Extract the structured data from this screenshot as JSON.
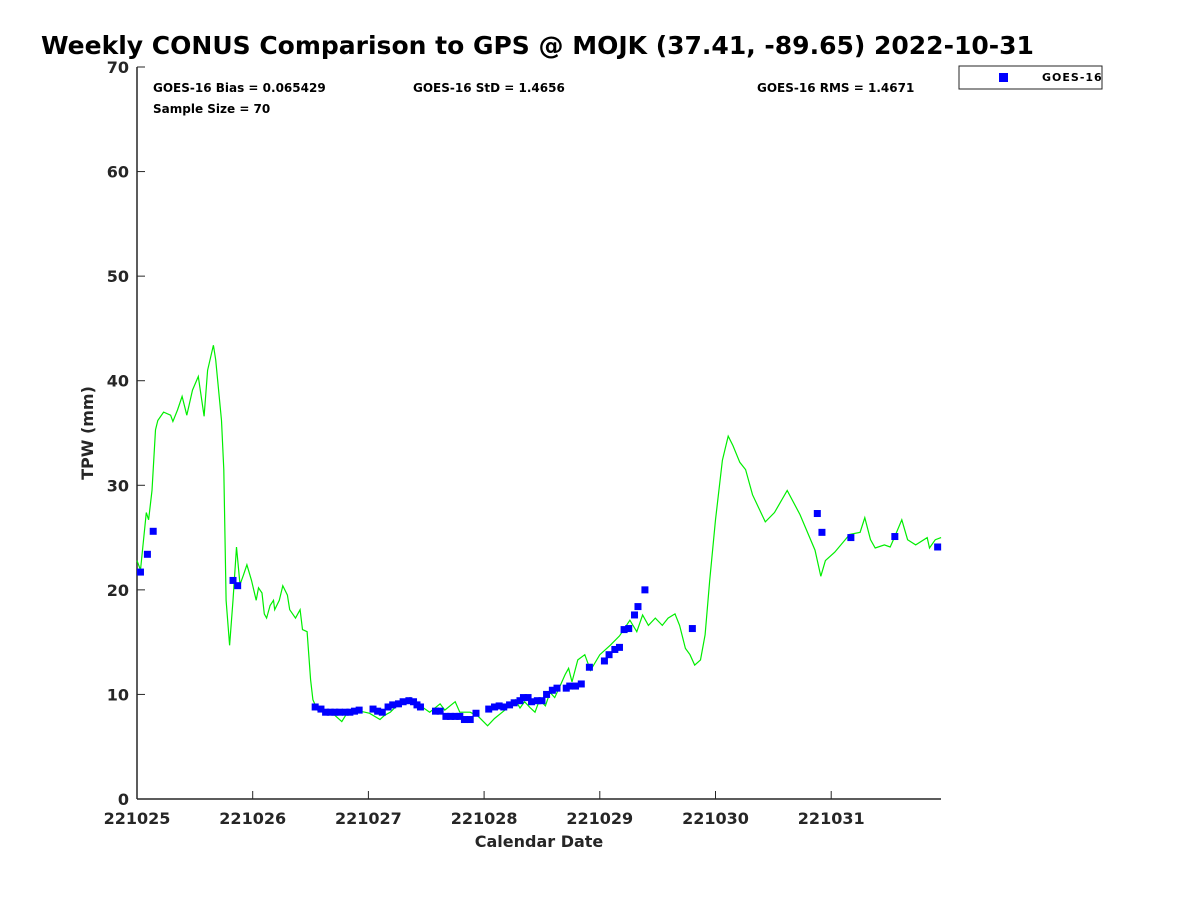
{
  "chart_data": {
    "type": "line",
    "title": "Weekly CONUS Comparison to GPS @ MOJK (37.41, -89.65) 2022-10-31",
    "xlabel": "Calendar Date",
    "ylabel": "TPW (mm)",
    "xlim": [
      0,
      6.95
    ],
    "ylim": [
      0,
      70
    ],
    "x_ticks": [
      0,
      1,
      2,
      3,
      4,
      5,
      6
    ],
    "x_tick_labels": [
      "221025",
      "221026",
      "221027",
      "221028",
      "221029",
      "221030",
      "221031"
    ],
    "y_ticks": [
      0,
      10,
      20,
      30,
      40,
      50,
      60,
      70
    ],
    "y_tick_labels": [
      "0",
      "10",
      "20",
      "30",
      "40",
      "50",
      "60",
      "70"
    ],
    "grid": false,
    "legend": {
      "position": "top-right, outside",
      "entries": [
        "GOES-16"
      ]
    },
    "stats": {
      "bias": "GOES-16 Bias = 0.065429",
      "std": "GOES-16 StD = 1.4656",
      "rms": "GOES-16 RMS = 1.4671",
      "sample_size": "Sample Size = 70"
    },
    "colors": {
      "gps_line": "#00ee00",
      "goes16": "#0000ff"
    },
    "series": [
      {
        "name": "GPS",
        "kind": "line",
        "points": [
          [
            0.0,
            22.8
          ],
          [
            0.03,
            21.9
          ],
          [
            0.08,
            27.4
          ],
          [
            0.1,
            26.7
          ],
          [
            0.13,
            29.5
          ],
          [
            0.16,
            35.3
          ],
          [
            0.18,
            36.2
          ],
          [
            0.23,
            37.0
          ],
          [
            0.29,
            36.7
          ],
          [
            0.31,
            36.1
          ],
          [
            0.35,
            37.2
          ],
          [
            0.39,
            38.5
          ],
          [
            0.43,
            36.7
          ],
          [
            0.48,
            39.1
          ],
          [
            0.53,
            40.4
          ],
          [
            0.58,
            36.6
          ],
          [
            0.61,
            41.0
          ],
          [
            0.66,
            43.4
          ],
          [
            0.68,
            42.0
          ],
          [
            0.73,
            36.2
          ],
          [
            0.75,
            31.5
          ],
          [
            0.77,
            19.0
          ],
          [
            0.8,
            14.7
          ],
          [
            0.83,
            19.0
          ],
          [
            0.86,
            24.1
          ],
          [
            0.89,
            20.5
          ],
          [
            0.92,
            21.4
          ],
          [
            0.95,
            22.4
          ],
          [
            0.99,
            20.9
          ],
          [
            1.03,
            19.0
          ],
          [
            1.05,
            20.2
          ],
          [
            1.08,
            19.7
          ],
          [
            1.1,
            17.7
          ],
          [
            1.12,
            17.3
          ],
          [
            1.15,
            18.5
          ],
          [
            1.18,
            19.0
          ],
          [
            1.19,
            18.1
          ],
          [
            1.23,
            19.0
          ],
          [
            1.26,
            20.4
          ],
          [
            1.3,
            19.5
          ],
          [
            1.32,
            18.1
          ],
          [
            1.37,
            17.3
          ],
          [
            1.41,
            18.1
          ],
          [
            1.43,
            16.2
          ],
          [
            1.47,
            16.0
          ],
          [
            1.5,
            11.4
          ],
          [
            1.52,
            9.5
          ],
          [
            1.56,
            8.5
          ],
          [
            1.62,
            8.3
          ],
          [
            1.71,
            8.0
          ],
          [
            1.77,
            7.4
          ],
          [
            1.82,
            8.3
          ],
          [
            1.88,
            8.5
          ],
          [
            1.97,
            8.3
          ],
          [
            2.01,
            8.2
          ],
          [
            2.1,
            7.6
          ],
          [
            2.14,
            8.0
          ],
          [
            2.19,
            8.3
          ],
          [
            2.27,
            9.2
          ],
          [
            2.36,
            9.7
          ],
          [
            2.45,
            8.9
          ],
          [
            2.53,
            8.3
          ],
          [
            2.62,
            9.1
          ],
          [
            2.66,
            8.5
          ],
          [
            2.75,
            9.3
          ],
          [
            2.79,
            8.3
          ],
          [
            2.88,
            8.3
          ],
          [
            2.95,
            7.9
          ],
          [
            3.03,
            7.0
          ],
          [
            3.09,
            7.7
          ],
          [
            3.18,
            8.5
          ],
          [
            3.27,
            9.5
          ],
          [
            3.31,
            8.7
          ],
          [
            3.35,
            9.3
          ],
          [
            3.4,
            8.7
          ],
          [
            3.44,
            8.3
          ],
          [
            3.48,
            9.5
          ],
          [
            3.53,
            8.9
          ],
          [
            3.57,
            10.2
          ],
          [
            3.61,
            9.7
          ],
          [
            3.66,
            10.9
          ],
          [
            3.7,
            11.9
          ],
          [
            3.73,
            12.5
          ],
          [
            3.76,
            11.2
          ],
          [
            3.81,
            13.3
          ],
          [
            3.87,
            13.8
          ],
          [
            3.92,
            12.3
          ],
          [
            4.0,
            13.8
          ],
          [
            4.09,
            14.7
          ],
          [
            4.17,
            15.6
          ],
          [
            4.26,
            17.1
          ],
          [
            4.32,
            16.0
          ],
          [
            4.37,
            17.6
          ],
          [
            4.42,
            16.6
          ],
          [
            4.48,
            17.3
          ],
          [
            4.54,
            16.6
          ],
          [
            4.59,
            17.3
          ],
          [
            4.65,
            17.7
          ],
          [
            4.69,
            16.6
          ],
          [
            4.74,
            14.4
          ],
          [
            4.78,
            13.8
          ],
          [
            4.82,
            12.8
          ],
          [
            4.87,
            13.3
          ],
          [
            4.91,
            15.7
          ],
          [
            4.95,
            20.9
          ],
          [
            5.0,
            26.7
          ],
          [
            5.06,
            32.4
          ],
          [
            5.11,
            34.7
          ],
          [
            5.15,
            33.8
          ],
          [
            5.21,
            32.2
          ],
          [
            5.26,
            31.5
          ],
          [
            5.32,
            29.1
          ],
          [
            5.43,
            26.5
          ],
          [
            5.51,
            27.4
          ],
          [
            5.62,
            29.5
          ],
          [
            5.73,
            27.2
          ],
          [
            5.86,
            23.8
          ],
          [
            5.91,
            21.3
          ],
          [
            5.95,
            22.8
          ],
          [
            6.03,
            23.6
          ],
          [
            6.16,
            25.3
          ],
          [
            6.25,
            25.5
          ],
          [
            6.29,
            26.9
          ],
          [
            6.34,
            24.8
          ],
          [
            6.38,
            24.0
          ],
          [
            6.46,
            24.3
          ],
          [
            6.51,
            24.1
          ],
          [
            6.55,
            25.1
          ],
          [
            6.61,
            26.7
          ],
          [
            6.66,
            24.8
          ],
          [
            6.73,
            24.3
          ],
          [
            6.83,
            25.0
          ],
          [
            6.85,
            24.0
          ],
          [
            6.9,
            24.8
          ],
          [
            6.95,
            25.0
          ]
        ]
      },
      {
        "name": "GOES-16",
        "kind": "scatter",
        "points": [
          [
            0.03,
            21.7
          ],
          [
            0.09,
            23.4
          ],
          [
            0.14,
            25.6
          ],
          [
            0.83,
            20.9
          ],
          [
            0.87,
            20.4
          ],
          [
            1.54,
            8.8
          ],
          [
            1.59,
            8.6
          ],
          [
            1.63,
            8.3
          ],
          [
            1.67,
            8.3
          ],
          [
            1.71,
            8.3
          ],
          [
            1.75,
            8.3
          ],
          [
            1.8,
            8.3
          ],
          [
            1.84,
            8.3
          ],
          [
            1.88,
            8.4
          ],
          [
            1.92,
            8.5
          ],
          [
            2.04,
            8.6
          ],
          [
            2.08,
            8.4
          ],
          [
            2.12,
            8.3
          ],
          [
            2.17,
            8.8
          ],
          [
            2.21,
            9.0
          ],
          [
            2.26,
            9.1
          ],
          [
            2.3,
            9.3
          ],
          [
            2.35,
            9.4
          ],
          [
            2.39,
            9.3
          ],
          [
            2.42,
            9.0
          ],
          [
            2.45,
            8.8
          ],
          [
            2.58,
            8.4
          ],
          [
            2.62,
            8.4
          ],
          [
            2.67,
            7.9
          ],
          [
            2.71,
            7.9
          ],
          [
            2.75,
            7.9
          ],
          [
            2.79,
            7.9
          ],
          [
            2.83,
            7.6
          ],
          [
            2.88,
            7.6
          ],
          [
            2.93,
            8.2
          ],
          [
            3.04,
            8.6
          ],
          [
            3.09,
            8.8
          ],
          [
            3.13,
            8.9
          ],
          [
            3.17,
            8.8
          ],
          [
            3.22,
            9.0
          ],
          [
            3.26,
            9.2
          ],
          [
            3.31,
            9.4
          ],
          [
            3.34,
            9.7
          ],
          [
            3.38,
            9.7
          ],
          [
            3.41,
            9.3
          ],
          [
            3.46,
            9.4
          ],
          [
            3.5,
            9.4
          ],
          [
            3.54,
            10.0
          ],
          [
            3.59,
            10.4
          ],
          [
            3.63,
            10.6
          ],
          [
            3.71,
            10.6
          ],
          [
            3.74,
            10.8
          ],
          [
            3.79,
            10.8
          ],
          [
            3.84,
            11.0
          ],
          [
            3.91,
            12.6
          ],
          [
            4.04,
            13.2
          ],
          [
            4.08,
            13.8
          ],
          [
            4.13,
            14.3
          ],
          [
            4.17,
            14.5
          ],
          [
            4.21,
            16.2
          ],
          [
            4.25,
            16.3
          ],
          [
            4.3,
            17.6
          ],
          [
            4.33,
            18.4
          ],
          [
            4.39,
            20.0
          ],
          [
            4.8,
            16.3
          ],
          [
            5.88,
            27.3
          ],
          [
            5.92,
            25.5
          ],
          [
            6.17,
            25.0
          ],
          [
            6.55,
            25.1
          ],
          [
            6.92,
            24.1
          ]
        ]
      }
    ]
  }
}
